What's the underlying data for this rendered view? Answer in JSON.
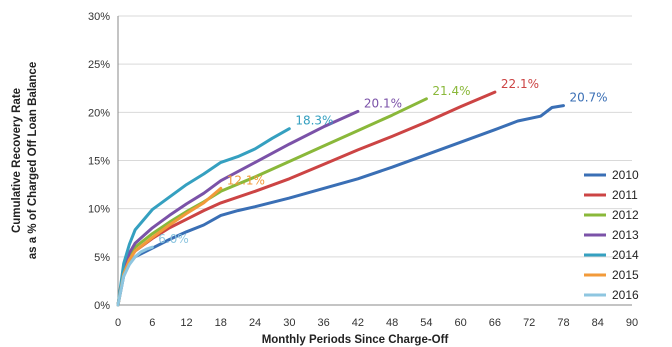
{
  "chart_data": {
    "type": "line",
    "xlabel": "Monthly Periods Since Charge-Off",
    "ylabel_lines": [
      "Cumulative Recovery Rate",
      "as a % of Charged Off Loan Balance"
    ],
    "xlim": [
      0,
      90
    ],
    "ylim": [
      0,
      30
    ],
    "x_ticks": [
      0,
      6,
      12,
      18,
      24,
      30,
      36,
      42,
      48,
      54,
      60,
      66,
      72,
      78,
      84,
      90
    ],
    "y_ticks": [
      0,
      5,
      10,
      15,
      20,
      25,
      30
    ],
    "y_tick_labels": [
      "0%",
      "5%",
      "10%",
      "15%",
      "20%",
      "25%",
      "30%"
    ],
    "grid": "horizontal",
    "legend_position": "bottom-right",
    "series": [
      {
        "name": "2010",
        "color": "#3a6fb5",
        "end_label": "20.7%",
        "points": [
          [
            0,
            0
          ],
          [
            1,
            3.0
          ],
          [
            2,
            4.3
          ],
          [
            3,
            5.0
          ],
          [
            6,
            5.9
          ],
          [
            9,
            6.8
          ],
          [
            12,
            7.6
          ],
          [
            15,
            8.3
          ],
          [
            18,
            9.3
          ],
          [
            21,
            9.8
          ],
          [
            24,
            10.2
          ],
          [
            30,
            11.1
          ],
          [
            36,
            12.1
          ],
          [
            42,
            13.1
          ],
          [
            48,
            14.3
          ],
          [
            54,
            15.6
          ],
          [
            60,
            16.9
          ],
          [
            66,
            18.2
          ],
          [
            70,
            19.1
          ],
          [
            74,
            19.6
          ],
          [
            76,
            20.5
          ],
          [
            78,
            20.7
          ]
        ]
      },
      {
        "name": "2011",
        "color": "#cc4444",
        "end_label": "22.1%",
        "points": [
          [
            0,
            0
          ],
          [
            1,
            3.3
          ],
          [
            2,
            4.8
          ],
          [
            3,
            5.6
          ],
          [
            6,
            6.9
          ],
          [
            9,
            8.0
          ],
          [
            12,
            8.9
          ],
          [
            15,
            9.8
          ],
          [
            18,
            10.6
          ],
          [
            24,
            11.8
          ],
          [
            30,
            13.1
          ],
          [
            36,
            14.6
          ],
          [
            42,
            16.1
          ],
          [
            48,
            17.5
          ],
          [
            54,
            19.0
          ],
          [
            60,
            20.6
          ],
          [
            66,
            22.1
          ]
        ]
      },
      {
        "name": "2012",
        "color": "#8ab83a",
        "end_label": "21.4%",
        "points": [
          [
            0,
            0
          ],
          [
            1,
            3.5
          ],
          [
            2,
            5.1
          ],
          [
            3,
            6.0
          ],
          [
            6,
            7.4
          ],
          [
            9,
            8.6
          ],
          [
            12,
            9.7
          ],
          [
            15,
            10.7
          ],
          [
            18,
            11.8
          ],
          [
            24,
            13.3
          ],
          [
            30,
            14.9
          ],
          [
            36,
            16.5
          ],
          [
            42,
            18.1
          ],
          [
            48,
            19.7
          ],
          [
            54,
            21.4
          ]
        ]
      },
      {
        "name": "2013",
        "color": "#7b52a8",
        "end_label": "20.1%",
        "points": [
          [
            0,
            0
          ],
          [
            1,
            3.7
          ],
          [
            2,
            5.4
          ],
          [
            3,
            6.4
          ],
          [
            6,
            8.0
          ],
          [
            9,
            9.3
          ],
          [
            12,
            10.5
          ],
          [
            15,
            11.6
          ],
          [
            18,
            12.9
          ],
          [
            24,
            14.8
          ],
          [
            30,
            16.7
          ],
          [
            36,
            18.5
          ],
          [
            42,
            20.1
          ]
        ]
      },
      {
        "name": "2014",
        "color": "#35a0c0",
        "end_label": "18.3%",
        "points": [
          [
            0,
            0
          ],
          [
            1,
            4.3
          ],
          [
            2,
            6.3
          ],
          [
            3,
            7.8
          ],
          [
            6,
            9.9
          ],
          [
            9,
            11.2
          ],
          [
            12,
            12.5
          ],
          [
            15,
            13.6
          ],
          [
            18,
            14.8
          ],
          [
            21,
            15.4
          ],
          [
            24,
            16.2
          ],
          [
            27,
            17.3
          ],
          [
            30,
            18.3
          ]
        ]
      },
      {
        "name": "2015",
        "color": "#f29a3a",
        "end_label": "12.1%",
        "points": [
          [
            0,
            0
          ],
          [
            1,
            3.2
          ],
          [
            2,
            4.7
          ],
          [
            3,
            5.6
          ],
          [
            6,
            7.0
          ],
          [
            9,
            8.3
          ],
          [
            12,
            9.5
          ],
          [
            15,
            10.6
          ],
          [
            18,
            12.1
          ]
        ]
      },
      {
        "name": "2016",
        "color": "#8ec6e0",
        "end_label": "6.0%",
        "points": [
          [
            0,
            0
          ],
          [
            1,
            3.0
          ],
          [
            2,
            4.2
          ],
          [
            3,
            5.0
          ],
          [
            4,
            5.5
          ],
          [
            5,
            5.8
          ],
          [
            6,
            6.0
          ]
        ]
      }
    ]
  }
}
